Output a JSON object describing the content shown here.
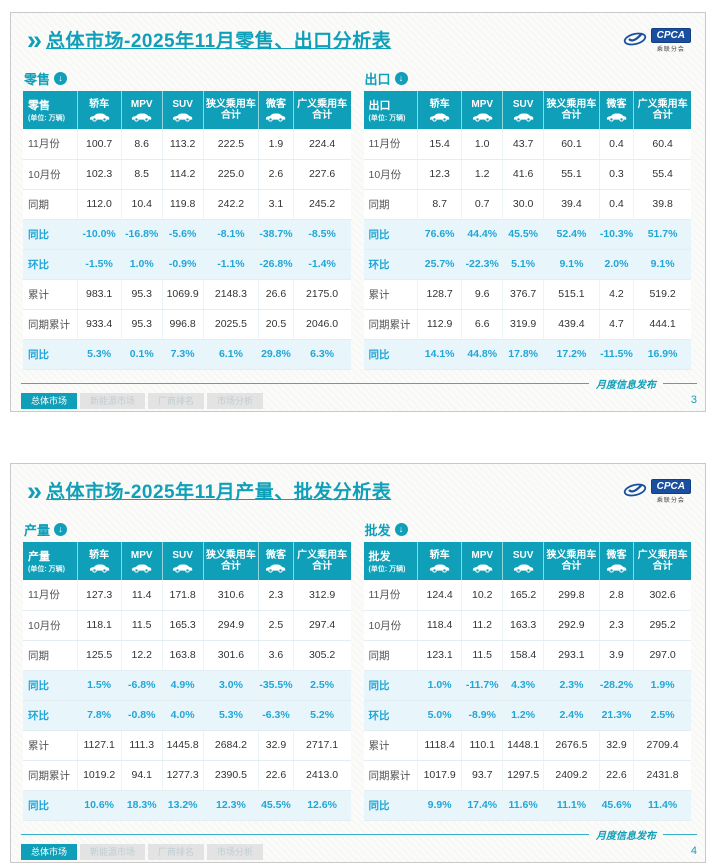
{
  "logo": {
    "text": "CPCA",
    "subtext": "乘联分会"
  },
  "footer": {
    "note": "月度信息发布",
    "tabs": [
      {
        "id": "overall-market",
        "label": "总体市场",
        "active": true
      },
      {
        "id": "nev-market",
        "label": "新能源市场",
        "active": false
      },
      {
        "id": "manufacturer-ranking",
        "label": "厂商排名",
        "active": false
      },
      {
        "id": "market-analysis",
        "label": "市场分析",
        "active": false
      }
    ]
  },
  "columns": [
    {
      "label": "轿车",
      "icon": "sedan-icon"
    },
    {
      "label": "MPV",
      "icon": "mpv-icon"
    },
    {
      "label": "SUV",
      "icon": "suv-icon"
    },
    {
      "label": "狭义乘用车合计",
      "icon": null
    },
    {
      "label": "微客",
      "icon": "minibus-icon"
    },
    {
      "label": "广义乘用车合计",
      "icon": null
    }
  ],
  "slides": [
    {
      "title": "总体市场-2025年11月零售、出口分析表",
      "page_number": "3",
      "tables": [
        {
          "semantic": "retail",
          "name": "零售",
          "unit": "(单位: 万辆)",
          "rows": [
            {
              "label": "11月份",
              "type": "data",
              "values": [
                "100.7",
                "8.6",
                "113.2",
                "222.5",
                "1.9",
                "224.4"
              ]
            },
            {
              "label": "10月份",
              "type": "data",
              "values": [
                "102.3",
                "8.5",
                "114.2",
                "225.0",
                "2.6",
                "227.6"
              ]
            },
            {
              "label": "同期",
              "type": "data",
              "values": [
                "112.0",
                "10.4",
                "119.8",
                "242.2",
                "3.1",
                "245.2"
              ]
            },
            {
              "label": "同比",
              "type": "pct",
              "values": [
                "-10.0%",
                "-16.8%",
                "-5.6%",
                "-8.1%",
                "-38.7%",
                "-8.5%"
              ]
            },
            {
              "label": "环比",
              "type": "pct",
              "values": [
                "-1.5%",
                "1.0%",
                "-0.9%",
                "-1.1%",
                "-26.8%",
                "-1.4%"
              ]
            },
            {
              "label": "累计",
              "type": "data",
              "values": [
                "983.1",
                "95.3",
                "1069.9",
                "2148.3",
                "26.6",
                "2175.0"
              ]
            },
            {
              "label": "同期累计",
              "type": "data",
              "values": [
                "933.4",
                "95.3",
                "996.8",
                "2025.5",
                "20.5",
                "2046.0"
              ]
            },
            {
              "label": "同比",
              "type": "pct",
              "values": [
                "5.3%",
                "0.1%",
                "7.3%",
                "6.1%",
                "29.8%",
                "6.3%"
              ]
            }
          ]
        },
        {
          "semantic": "export",
          "name": "出口",
          "unit": "(单位: 万辆)",
          "rows": [
            {
              "label": "11月份",
              "type": "data",
              "values": [
                "15.4",
                "1.0",
                "43.7",
                "60.1",
                "0.4",
                "60.4"
              ]
            },
            {
              "label": "10月份",
              "type": "data",
              "values": [
                "12.3",
                "1.2",
                "41.6",
                "55.1",
                "0.3",
                "55.4"
              ]
            },
            {
              "label": "同期",
              "type": "data",
              "values": [
                "8.7",
                "0.7",
                "30.0",
                "39.4",
                "0.4",
                "39.8"
              ]
            },
            {
              "label": "同比",
              "type": "pct",
              "values": [
                "76.6%",
                "44.4%",
                "45.5%",
                "52.4%",
                "-10.3%",
                "51.7%"
              ]
            },
            {
              "label": "环比",
              "type": "pct",
              "values": [
                "25.7%",
                "-22.3%",
                "5.1%",
                "9.1%",
                "2.0%",
                "9.1%"
              ]
            },
            {
              "label": "累计",
              "type": "data",
              "values": [
                "128.7",
                "9.6",
                "376.7",
                "515.1",
                "4.2",
                "519.2"
              ]
            },
            {
              "label": "同期累计",
              "type": "data",
              "values": [
                "112.9",
                "6.6",
                "319.9",
                "439.4",
                "4.7",
                "444.1"
              ]
            },
            {
              "label": "同比",
              "type": "pct",
              "values": [
                "14.1%",
                "44.8%",
                "17.8%",
                "17.2%",
                "-11.5%",
                "16.9%"
              ]
            }
          ]
        }
      ]
    },
    {
      "title": "总体市场-2025年11月产量、批发分析表",
      "page_number": "4",
      "tables": [
        {
          "semantic": "production",
          "name": "产量",
          "unit": "(单位: 万辆)",
          "rows": [
            {
              "label": "11月份",
              "type": "data",
              "values": [
                "127.3",
                "11.4",
                "171.8",
                "310.6",
                "2.3",
                "312.9"
              ]
            },
            {
              "label": "10月份",
              "type": "data",
              "values": [
                "118.1",
                "11.5",
                "165.3",
                "294.9",
                "2.5",
                "297.4"
              ]
            },
            {
              "label": "同期",
              "type": "data",
              "values": [
                "125.5",
                "12.2",
                "163.8",
                "301.6",
                "3.6",
                "305.2"
              ]
            },
            {
              "label": "同比",
              "type": "pct",
              "values": [
                "1.5%",
                "-6.8%",
                "4.9%",
                "3.0%",
                "-35.5%",
                "2.5%"
              ]
            },
            {
              "label": "环比",
              "type": "pct",
              "values": [
                "7.8%",
                "-0.8%",
                "4.0%",
                "5.3%",
                "-6.3%",
                "5.2%"
              ]
            },
            {
              "label": "累计",
              "type": "data",
              "values": [
                "1127.1",
                "111.3",
                "1445.8",
                "2684.2",
                "32.9",
                "2717.1"
              ]
            },
            {
              "label": "同期累计",
              "type": "data",
              "values": [
                "1019.2",
                "94.1",
                "1277.3",
                "2390.5",
                "22.6",
                "2413.0"
              ]
            },
            {
              "label": "同比",
              "type": "pct",
              "values": [
                "10.6%",
                "18.3%",
                "13.2%",
                "12.3%",
                "45.5%",
                "12.6%"
              ]
            }
          ]
        },
        {
          "semantic": "wholesale",
          "name": "批发",
          "unit": "(单位: 万辆)",
          "rows": [
            {
              "label": "11月份",
              "type": "data",
              "values": [
                "124.4",
                "10.2",
                "165.2",
                "299.8",
                "2.8",
                "302.6"
              ]
            },
            {
              "label": "10月份",
              "type": "data",
              "values": [
                "118.4",
                "11.2",
                "163.3",
                "292.9",
                "2.3",
                "295.2"
              ]
            },
            {
              "label": "同期",
              "type": "data",
              "values": [
                "123.1",
                "11.5",
                "158.4",
                "293.1",
                "3.9",
                "297.0"
              ]
            },
            {
              "label": "同比",
              "type": "pct",
              "values": [
                "1.0%",
                "-11.7%",
                "4.3%",
                "2.3%",
                "-28.2%",
                "1.9%"
              ]
            },
            {
              "label": "环比",
              "type": "pct",
              "values": [
                "5.0%",
                "-8.9%",
                "1.2%",
                "2.4%",
                "21.3%",
                "2.5%"
              ]
            },
            {
              "label": "累计",
              "type": "data",
              "values": [
                "1118.4",
                "110.1",
                "1448.1",
                "2676.5",
                "32.9",
                "2709.4"
              ]
            },
            {
              "label": "同期累计",
              "type": "data",
              "values": [
                "1017.9",
                "93.7",
                "1297.5",
                "2409.2",
                "22.6",
                "2431.8"
              ]
            },
            {
              "label": "同比",
              "type": "pct",
              "values": [
                "9.9%",
                "17.4%",
                "11.6%",
                "11.1%",
                "45.6%",
                "11.4%"
              ]
            }
          ]
        }
      ]
    }
  ]
}
